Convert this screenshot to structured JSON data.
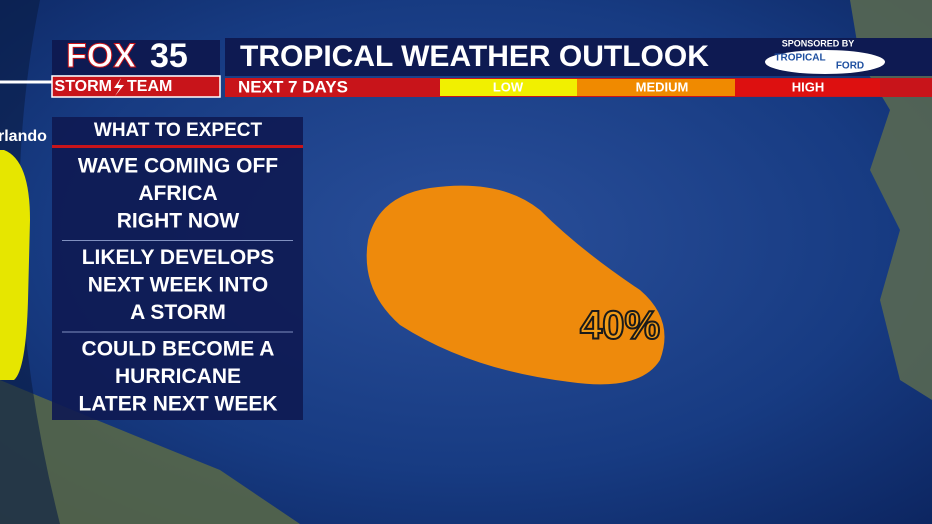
{
  "header": {
    "logo": {
      "station": "FOX",
      "channel": "35",
      "team_left": "STORM",
      "team_right": "TEAM"
    },
    "title": "TROPICAL WEATHER OUTLOOK",
    "period": "NEXT 7 DAYS",
    "legend": [
      "LOW",
      "MEDIUM",
      "HIGH"
    ],
    "sponsor": {
      "caption": "SPONSORED BY",
      "line1": "TROPICAL",
      "line2": "FORD"
    }
  },
  "map": {
    "city_label": "rlando",
    "area_label": "40%"
  },
  "panel": {
    "title": "WHAT TO EXPECT",
    "items": [
      {
        "lines": [
          "WAVE COMING OFF",
          "AFRICA",
          "RIGHT NOW"
        ]
      },
      {
        "lines": [
          "LIKELY DEVELOPS",
          "NEXT WEEK INTO",
          "A STORM"
        ]
      },
      {
        "lines": [
          "COULD BECOME A",
          "HURRICANE",
          "LATER NEXT WEEK"
        ]
      }
    ]
  }
}
